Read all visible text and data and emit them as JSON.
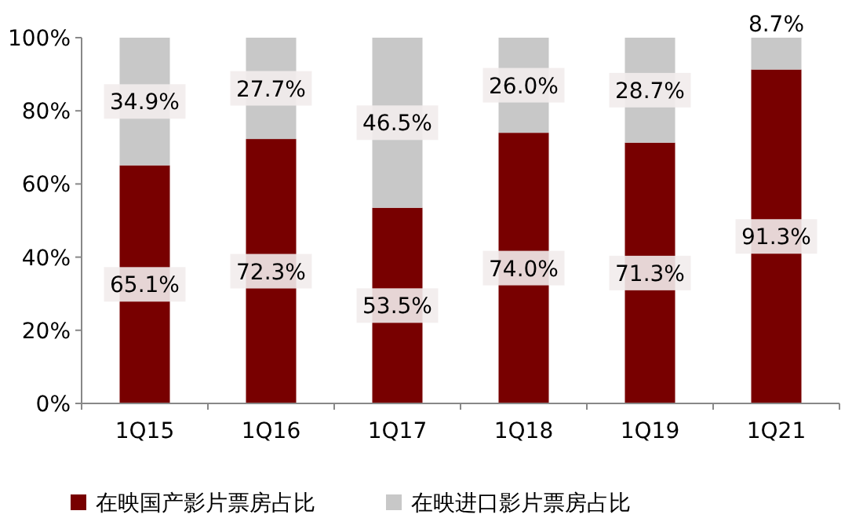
{
  "chart_data": {
    "type": "bar",
    "stacked": true,
    "categories": [
      "1Q15",
      "1Q16",
      "1Q17",
      "1Q18",
      "1Q19",
      "1Q21"
    ],
    "series": [
      {
        "name": "在映国产影片票房占比",
        "color": "#780000",
        "values": [
          65.1,
          72.3,
          53.5,
          74.0,
          71.3,
          91.3
        ],
        "value_labels": [
          "65.1%",
          "72.3%",
          "53.5%",
          "74.0%",
          "71.3%",
          "91.3%"
        ]
      },
      {
        "name": "在映进口影片票房占比",
        "color": "#c8c8c8",
        "values": [
          34.9,
          27.7,
          46.5,
          26.0,
          28.7,
          8.7
        ],
        "value_labels": [
          "34.9%",
          "27.7%",
          "46.5%",
          "26.0%",
          "28.7%",
          "8.7%"
        ]
      }
    ],
    "ylim": [
      0,
      100
    ],
    "yticks": [
      {
        "value": 0,
        "label": "0%"
      },
      {
        "value": 20,
        "label": "20%"
      },
      {
        "value": 40,
        "label": "40%"
      },
      {
        "value": 60,
        "label": "60%"
      },
      {
        "value": 80,
        "label": "80%"
      },
      {
        "value": 100,
        "label": "100%"
      }
    ],
    "legend": "bottom"
  }
}
